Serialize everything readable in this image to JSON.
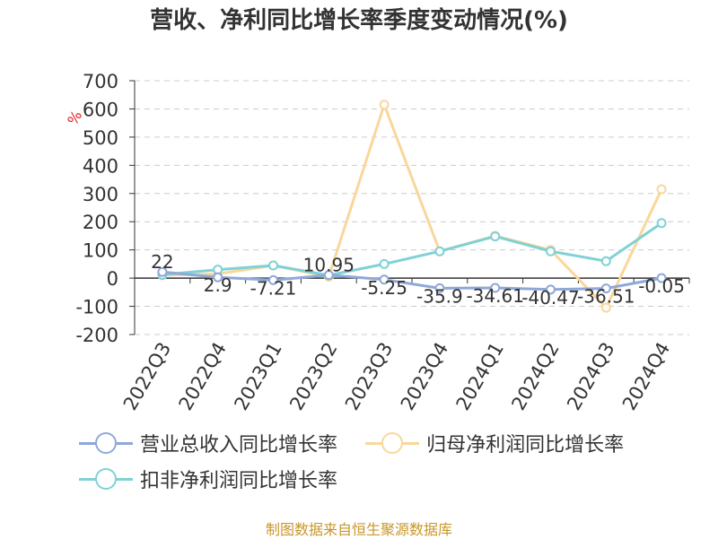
{
  "title": "营收、净利同比增长率季度变动情况(%)",
  "source": "制图数据来自恒生聚源数据库",
  "colors": {
    "revenue": "#8fa8d8",
    "net_profit": "#f9d79b",
    "deducted_profit": "#7fd1d6",
    "grid": "#cccccc",
    "axis_text": "#333333",
    "unit": "#e02020"
  },
  "chart_data": {
    "type": "line",
    "title": "营收、净利同比增长率季度变动情况(%)",
    "ylabel": "%",
    "ylim": [
      -200,
      700
    ],
    "yticks": [
      700,
      600,
      500,
      400,
      300,
      200,
      100,
      0,
      -100,
      -200
    ],
    "grid": true,
    "legend": "bottom",
    "categories": [
      "2022Q3",
      "2022Q4",
      "2023Q1",
      "2023Q2",
      "2023Q3",
      "2023Q4",
      "2024Q1",
      "2024Q2",
      "2024Q3",
      "2024Q4"
    ],
    "series": [
      {
        "name": "营业总收入同比增长率",
        "key": "revenue",
        "values": [
          22,
          2.9,
          -7.21,
          10.95,
          -5.25,
          -35.9,
          -34.61,
          -40.47,
          -36.51,
          -0.05
        ],
        "labels": [
          "22",
          "2.9",
          "-7.21",
          "10.95",
          "-5.25",
          "-35.9",
          "-34.61",
          "-40.47",
          "-36.51",
          "-0.05"
        ]
      },
      {
        "name": "归母净利润同比增长率",
        "key": "net_profit",
        "values": [
          10,
          15,
          45,
          5,
          615,
          95,
          150,
          100,
          -105,
          315
        ]
      },
      {
        "name": "扣非净利润同比增长率",
        "key": "deducted_profit",
        "values": [
          12,
          30,
          45,
          10,
          50,
          95,
          148,
          95,
          60,
          195
        ]
      }
    ]
  }
}
